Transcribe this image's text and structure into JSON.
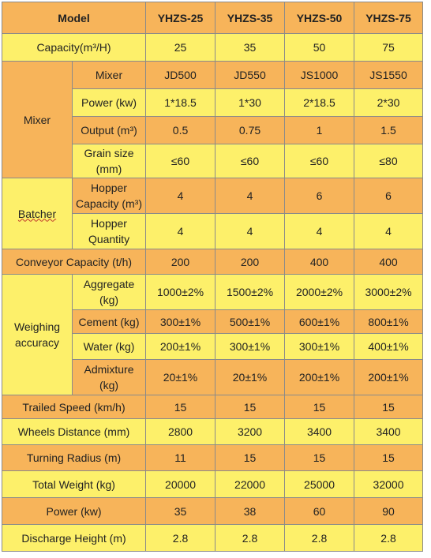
{
  "table": {
    "header": [
      "Model",
      "YHZS-25",
      "YHZS-35",
      "YHZS-50",
      "YHZS-75"
    ],
    "capacity": {
      "label": "Capacity(m³/H)",
      "values": [
        "25",
        "35",
        "50",
        "75"
      ]
    },
    "mixer": {
      "group": "Mixer",
      "rows": [
        {
          "label": "Mixer",
          "values": [
            "JD500",
            "JD550",
            "JS1000",
            "JS1550"
          ]
        },
        {
          "label": "Power (kw)",
          "values": [
            "1*18.5",
            "1*30",
            "2*18.5",
            "2*30"
          ]
        },
        {
          "label": "Output (m³)",
          "values": [
            "0.5",
            "0.75",
            "1",
            "1.5"
          ]
        },
        {
          "label": "Grain size (mm)",
          "values": [
            "≤60",
            "≤60",
            "≤60",
            "≤80"
          ]
        }
      ]
    },
    "batcher": {
      "group": "Batcher",
      "rows": [
        {
          "label": "Hopper Capacity (m³)",
          "values": [
            "4",
            "4",
            "6",
            "6"
          ]
        },
        {
          "label": "Hopper Quantity",
          "values": [
            "4",
            "4",
            "4",
            "4"
          ]
        }
      ]
    },
    "conveyor": {
      "label": "Conveyor Capacity (t/h)",
      "values": [
        "200",
        "200",
        "400",
        "400"
      ]
    },
    "weighing": {
      "group": "Weighing accuracy",
      "rows": [
        {
          "label": "Aggregate (kg)",
          "values": [
            "1000±2%",
            "1500±2%",
            "2000±2%",
            "3000±2%"
          ]
        },
        {
          "label": "Cement (kg)",
          "values": [
            "300±1%",
            "500±1%",
            "600±1%",
            "800±1%"
          ]
        },
        {
          "label": "Water (kg)",
          "values": [
            "200±1%",
            "300±1%",
            "300±1%",
            "400±1%"
          ]
        },
        {
          "label": "Admixture (kg)",
          "values": [
            "20±1%",
            "20±1%",
            "200±1%",
            "200±1%"
          ]
        }
      ]
    },
    "trailed_speed": {
      "label": "Trailed Speed (km/h)",
      "values": [
        "15",
        "15",
        "15",
        "15"
      ]
    },
    "wheels_distance": {
      "label": "Wheels Distance (mm)",
      "values": [
        "2800",
        "3200",
        "3400",
        "3400"
      ]
    },
    "turning_radius": {
      "label": "Turning Radius (m)",
      "values": [
        "11",
        "15",
        "15",
        "15"
      ]
    },
    "total_weight": {
      "label": "Total Weight (kg)",
      "values": [
        "20000",
        "22000",
        "25000",
        "32000"
      ]
    },
    "power": {
      "label": "Power (kw)",
      "values": [
        "35",
        "38",
        "60",
        "90"
      ]
    },
    "discharge_height": {
      "label": "Discharge Height (m)",
      "values": [
        "2.8",
        "2.8",
        "2.8",
        "2.8"
      ]
    }
  },
  "colors": {
    "orange": "#f7b45a",
    "yellow": "#fdf06a",
    "border": "#8a8a8a"
  }
}
